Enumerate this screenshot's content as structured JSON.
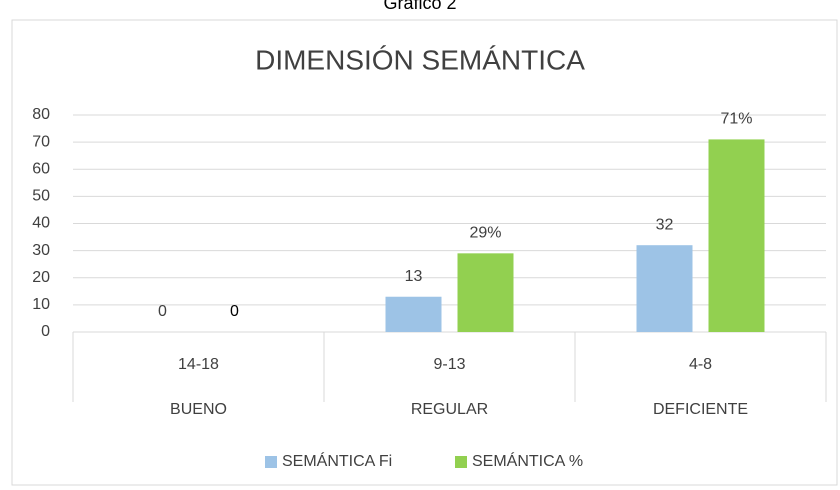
{
  "chart_data": {
    "type": "bar",
    "caption": "Gráfico 2",
    "title": "DIMENSIÓN SEMÁNTICA",
    "categories": [
      "14-18",
      "9-13",
      "4-8"
    ],
    "groups": [
      "BUENO",
      "REGULAR",
      "DEFICIENTE"
    ],
    "series": [
      {
        "name": "SEMÁNTICA Fi",
        "color": "#9dc3e6",
        "values": [
          0,
          13,
          32
        ]
      },
      {
        "name": "SEMÁNTICA %",
        "color": "#92d050",
        "values": [
          0,
          29,
          71
        ],
        "value_labels": [
          "0",
          "29%",
          "71%"
        ]
      }
    ],
    "ylim": [
      0,
      80
    ],
    "yticks": [
      0,
      10,
      20,
      30,
      40,
      50,
      60,
      70,
      80
    ],
    "grid": true,
    "legend": "bottom"
  }
}
